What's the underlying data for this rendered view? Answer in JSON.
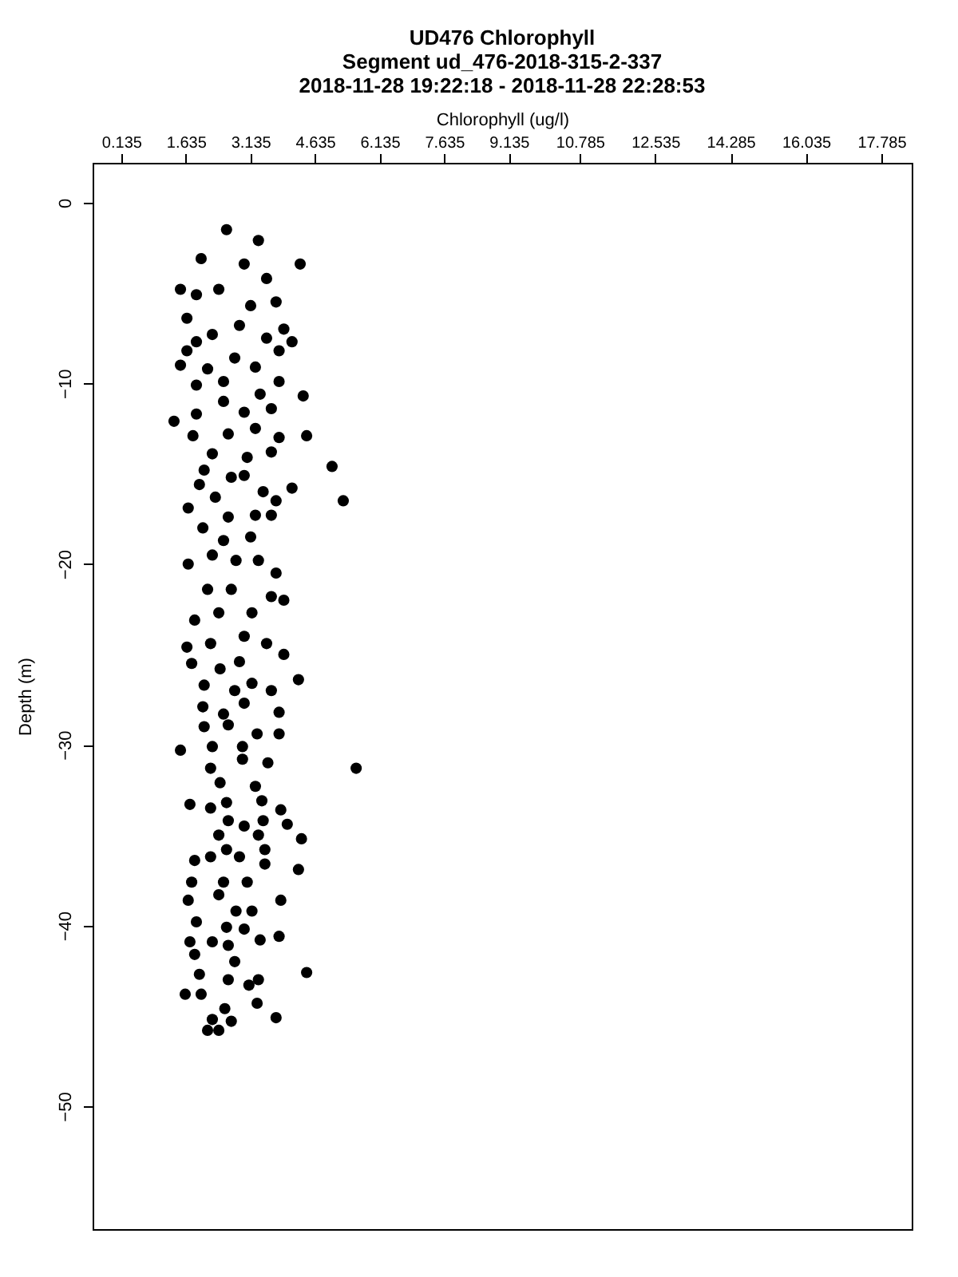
{
  "chart_data": {
    "type": "scatter",
    "title": "UD476 Chlorophyll",
    "subtitle": "Segment ud_476-2018-315-2-337\n2018-11-28 19:22:18 - 2018-11-28 22:28:53",
    "xlabel": "Chlorophyll (ug/l)",
    "ylabel": "Depth (m)",
    "xlim": [
      -0.53,
      18.49
    ],
    "xticks": [
      0.135,
      1.635,
      3.135,
      4.635,
      6.135,
      7.635,
      9.135,
      10.785,
      12.535,
      14.285,
      16.035,
      17.785
    ],
    "ylim": [
      -56.8,
      2.2
    ],
    "yticks": [
      0,
      -10,
      -20,
      -30,
      -40,
      -50
    ],
    "grid": false,
    "marker": "circle",
    "series": [
      {
        "color": "#000000",
        "x": [
          2.58,
          3.32,
          4.29,
          1.99,
          1.51,
          1.88,
          2.4,
          2.99,
          3.51,
          1.66,
          3.14,
          3.73,
          2.25,
          2.88,
          3.91,
          1.66,
          1.88,
          3.51,
          4.1,
          1.51,
          2.14,
          2.77,
          3.25,
          3.8,
          1.88,
          2.51,
          3.36,
          3.8,
          4.36,
          1.36,
          1.88,
          2.51,
          2.99,
          3.62,
          1.8,
          2.62,
          3.25,
          3.8,
          4.44,
          2.25,
          3.06,
          3.62,
          5.03,
          2.06,
          2.69,
          2.99,
          4.1,
          5.29,
          1.95,
          2.32,
          3.43,
          3.73,
          1.69,
          2.62,
          3.25,
          3.62,
          2.03,
          2.51,
          3.14,
          1.69,
          2.25,
          2.8,
          3.32,
          3.73,
          2.14,
          2.69,
          3.62,
          3.91,
          1.84,
          2.4,
          3.17,
          1.66,
          2.21,
          2.99,
          3.51,
          3.91,
          1.77,
          2.43,
          2.88,
          4.25,
          2.06,
          2.77,
          3.17,
          3.62,
          2.03,
          2.51,
          2.99,
          3.8,
          2.06,
          2.62,
          3.29,
          3.8,
          1.51,
          2.25,
          2.95,
          5.59,
          2.21,
          2.95,
          3.54,
          2.43,
          3.25,
          1.73,
          2.21,
          2.58,
          3.4,
          3.84,
          2.62,
          2.99,
          3.43,
          3.99,
          2.4,
          3.32,
          4.32,
          1.84,
          2.21,
          2.58,
          2.88,
          3.47,
          3.47,
          4.25,
          1.77,
          2.51,
          3.06,
          1.69,
          2.4,
          2.8,
          3.17,
          3.84,
          1.88,
          2.58,
          2.99,
          3.36,
          3.8,
          1.73,
          2.25,
          1.84,
          2.62,
          4.44,
          1.95,
          2.77,
          1.62,
          1.99,
          2.62,
          3.1,
          3.32,
          3.29,
          3.73,
          2.54,
          2.25,
          2.69,
          2.14,
          2.4
        ],
        "values": [
          -1.5,
          -2.1,
          -3.4,
          -3.1,
          -4.8,
          -5.1,
          -4.8,
          -3.4,
          -4.2,
          -6.4,
          -5.7,
          -5.5,
          -7.3,
          -6.8,
          -7.0,
          -8.2,
          -7.7,
          -7.5,
          -7.7,
          -9.0,
          -9.2,
          -8.6,
          -9.1,
          -8.2,
          -10.1,
          -9.9,
          -10.6,
          -9.9,
          -10.7,
          -12.1,
          -11.7,
          -11.0,
          -11.6,
          -11.4,
          -12.9,
          -12.8,
          -12.5,
          -13.0,
          -12.9,
          -13.9,
          -14.1,
          -13.8,
          -14.6,
          -14.8,
          -15.2,
          -15.1,
          -15.8,
          -16.5,
          -15.6,
          -16.3,
          -16.0,
          -16.5,
          -16.9,
          -17.4,
          -17.3,
          -17.3,
          -18.0,
          -18.7,
          -18.5,
          -20.0,
          -19.5,
          -19.8,
          -19.8,
          -20.5,
          -21.4,
          -21.4,
          -21.8,
          -22.0,
          -23.1,
          -22.7,
          -22.7,
          -24.6,
          -24.4,
          -24.0,
          -24.4,
          -25.0,
          -25.5,
          -25.8,
          -25.4,
          -26.4,
          -26.7,
          -27.0,
          -26.6,
          -27.0,
          -27.9,
          -28.3,
          -27.7,
          -28.2,
          -29.0,
          -28.9,
          -29.4,
          -29.4,
          -30.3,
          -30.1,
          -30.1,
          -31.3,
          -31.3,
          -30.8,
          -31.0,
          -32.1,
          -32.3,
          -33.3,
          -33.5,
          -33.2,
          -33.1,
          -33.6,
          -34.2,
          -34.5,
          -34.2,
          -34.4,
          -35.0,
          -35.0,
          -35.2,
          -36.4,
          -36.2,
          -35.8,
          -36.2,
          -35.8,
          -36.6,
          -36.9,
          -37.6,
          -37.6,
          -37.6,
          -38.6,
          -38.3,
          -39.2,
          -39.2,
          -38.6,
          -39.8,
          -40.1,
          -40.2,
          -40.8,
          -40.6,
          -40.9,
          -40.9,
          -41.6,
          -41.1,
          -42.6,
          -42.7,
          -42.0,
          -43.8,
          -43.8,
          -43.0,
          -43.3,
          -43.0,
          -44.3,
          -45.1,
          -44.6,
          -45.2,
          -45.3,
          -45.8,
          -45.8
        ]
      }
    ]
  }
}
